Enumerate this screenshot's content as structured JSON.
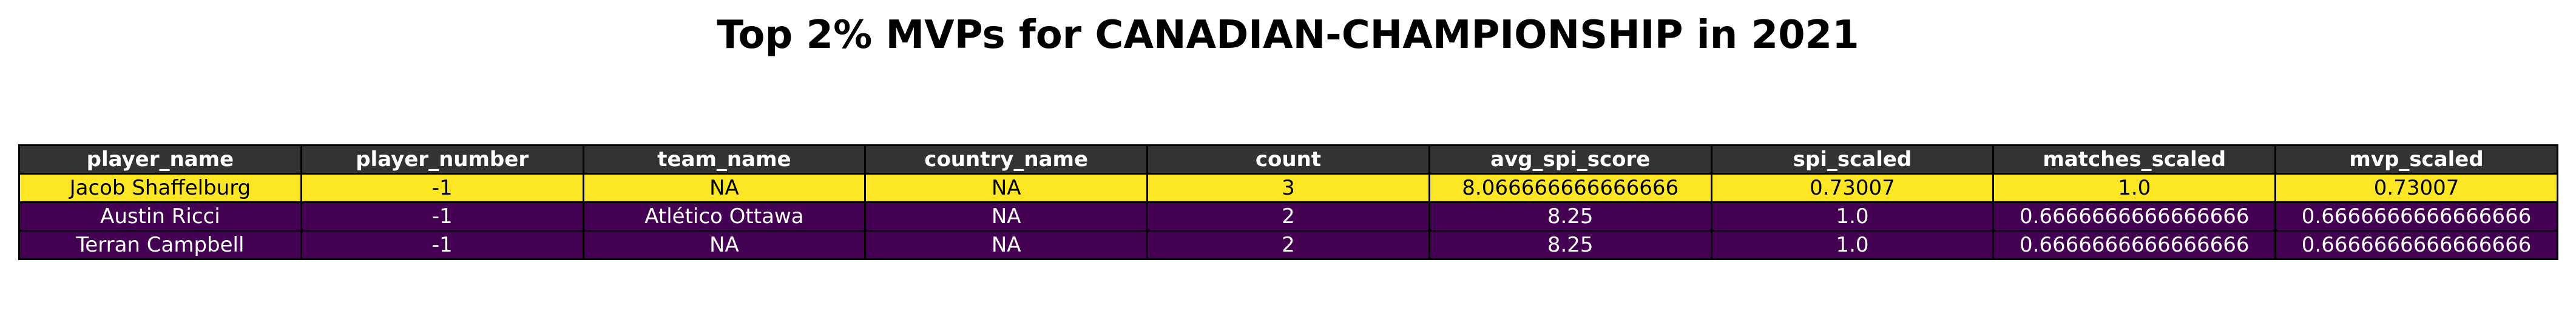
{
  "chart_data": {
    "type": "table",
    "title": "Top 2% MVPs for CANADIAN-CHAMPIONSHIP in 2021",
    "columns": [
      "player_name",
      "player_number",
      "team_name",
      "country_name",
      "count",
      "avg_spi_score",
      "spi_scaled",
      "matches_scaled",
      "mvp_scaled"
    ],
    "rows": [
      [
        "Jacob Shaffelburg",
        "-1",
        "NA",
        "NA",
        "3",
        "8.066666666666666",
        "0.73007",
        "1.0",
        "0.73007"
      ],
      [
        "Austin Ricci",
        "-1",
        "Atlético Ottawa",
        "NA",
        "2",
        "8.25",
        "1.0",
        "0.6666666666666666",
        "0.6666666666666666"
      ],
      [
        "Terran Campbell",
        "-1",
        "NA",
        "NA",
        "2",
        "8.25",
        "1.0",
        "0.6666666666666666",
        "0.6666666666666666"
      ]
    ],
    "mvp_values": [
      0.73007,
      0.6666666666666666,
      0.6666666666666666
    ],
    "colors": {
      "header_bg": "#333333",
      "header_text": "#ffffff",
      "top_row_bg": "#fde725",
      "top_row_text": "#000000",
      "other_row_bg": "#440154",
      "other_row_text": "#ffffff",
      "border": "#000000"
    }
  }
}
